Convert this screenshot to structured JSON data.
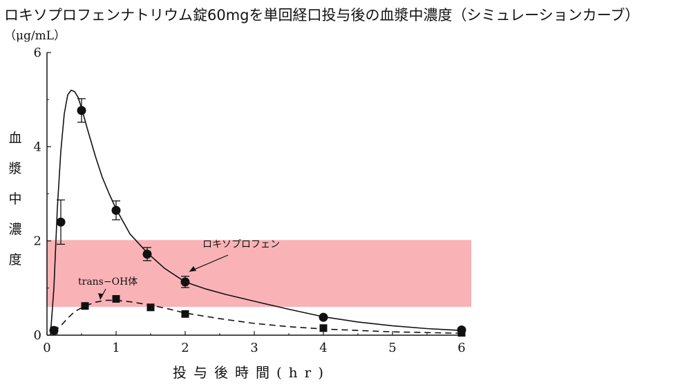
{
  "chart_data": {
    "type": "line",
    "title": "ロキソプロフェンナトリウム錠60mgを単回経口投与後の血漿中濃度（シミュレーションカーブ）",
    "y_unit": "（μg/mL）",
    "ylabel": "血漿中濃度",
    "xlabel": "投与後時間(hr)",
    "xlim": [
      0,
      6
    ],
    "ylim": [
      0,
      6
    ],
    "x_ticks": [
      0,
      1,
      2,
      3,
      4,
      5,
      6
    ],
    "y_ticks": [
      0,
      2,
      4,
      6
    ],
    "grid": false,
    "highlight_band": {
      "y_range": [
        0.6,
        2.02
      ],
      "color": "#f9b3b6"
    },
    "series": [
      {
        "name": "ロキソプロフェン",
        "marker": "circle",
        "line_style": "solid",
        "points": [
          {
            "x": 0.1,
            "y": 0.1,
            "err": 0
          },
          {
            "x": 0.2,
            "y": 2.4,
            "err": 0.47
          },
          {
            "x": 0.5,
            "y": 4.77,
            "err": 0.25
          },
          {
            "x": 1.0,
            "y": 2.65,
            "err": 0.2
          },
          {
            "x": 1.45,
            "y": 1.72,
            "err": 0.14
          },
          {
            "x": 2.0,
            "y": 1.13,
            "err": 0.12
          },
          {
            "x": 4.0,
            "y": 0.38,
            "err": 0
          },
          {
            "x": 6.0,
            "y": 0.11,
            "err": 0
          }
        ],
        "curve": [
          [
            0.05,
            0.0
          ],
          [
            0.1,
            1.0
          ],
          [
            0.15,
            2.7
          ],
          [
            0.2,
            3.9
          ],
          [
            0.25,
            4.7
          ],
          [
            0.3,
            5.1
          ],
          [
            0.35,
            5.2
          ],
          [
            0.4,
            5.17
          ],
          [
            0.45,
            5.05
          ],
          [
            0.5,
            4.82
          ],
          [
            0.6,
            4.3
          ],
          [
            0.7,
            3.8
          ],
          [
            0.8,
            3.35
          ],
          [
            0.9,
            3.0
          ],
          [
            1.0,
            2.68
          ],
          [
            1.2,
            2.15
          ],
          [
            1.45,
            1.75
          ],
          [
            1.7,
            1.42
          ],
          [
            2.0,
            1.13
          ],
          [
            2.3,
            0.98
          ],
          [
            2.6,
            0.86
          ],
          [
            3.0,
            0.72
          ],
          [
            3.5,
            0.55
          ],
          [
            4.0,
            0.39
          ],
          [
            4.5,
            0.28
          ],
          [
            5.0,
            0.2
          ],
          [
            5.5,
            0.14
          ],
          [
            6.0,
            0.1
          ]
        ]
      },
      {
        "name": "trans-OH体",
        "marker": "square",
        "line_style": "dashed",
        "points": [
          {
            "x": 0.1,
            "y": 0.1
          },
          {
            "x": 0.55,
            "y": 0.62
          },
          {
            "x": 1.0,
            "y": 0.77
          },
          {
            "x": 1.5,
            "y": 0.59
          },
          {
            "x": 2.0,
            "y": 0.45
          },
          {
            "x": 4.0,
            "y": 0.15
          },
          {
            "x": 6.0,
            "y": 0.05
          }
        ],
        "curve": [
          [
            0.1,
            0.07
          ],
          [
            0.2,
            0.2
          ],
          [
            0.3,
            0.36
          ],
          [
            0.4,
            0.5
          ],
          [
            0.55,
            0.62
          ],
          [
            0.7,
            0.7
          ],
          [
            0.85,
            0.74
          ],
          [
            1.0,
            0.74
          ],
          [
            1.2,
            0.71
          ],
          [
            1.5,
            0.64
          ],
          [
            1.75,
            0.56
          ],
          [
            2.0,
            0.47
          ],
          [
            2.5,
            0.35
          ],
          [
            3.0,
            0.25
          ],
          [
            3.5,
            0.18
          ],
          [
            4.0,
            0.13
          ],
          [
            5.0,
            0.07
          ],
          [
            6.0,
            0.04
          ]
        ]
      }
    ],
    "annotations": [
      {
        "text": "ロキソプロフェン",
        "series": "ロキソプロフェン"
      },
      {
        "text": "trans−OH体",
        "series": "trans-OH体"
      }
    ]
  }
}
